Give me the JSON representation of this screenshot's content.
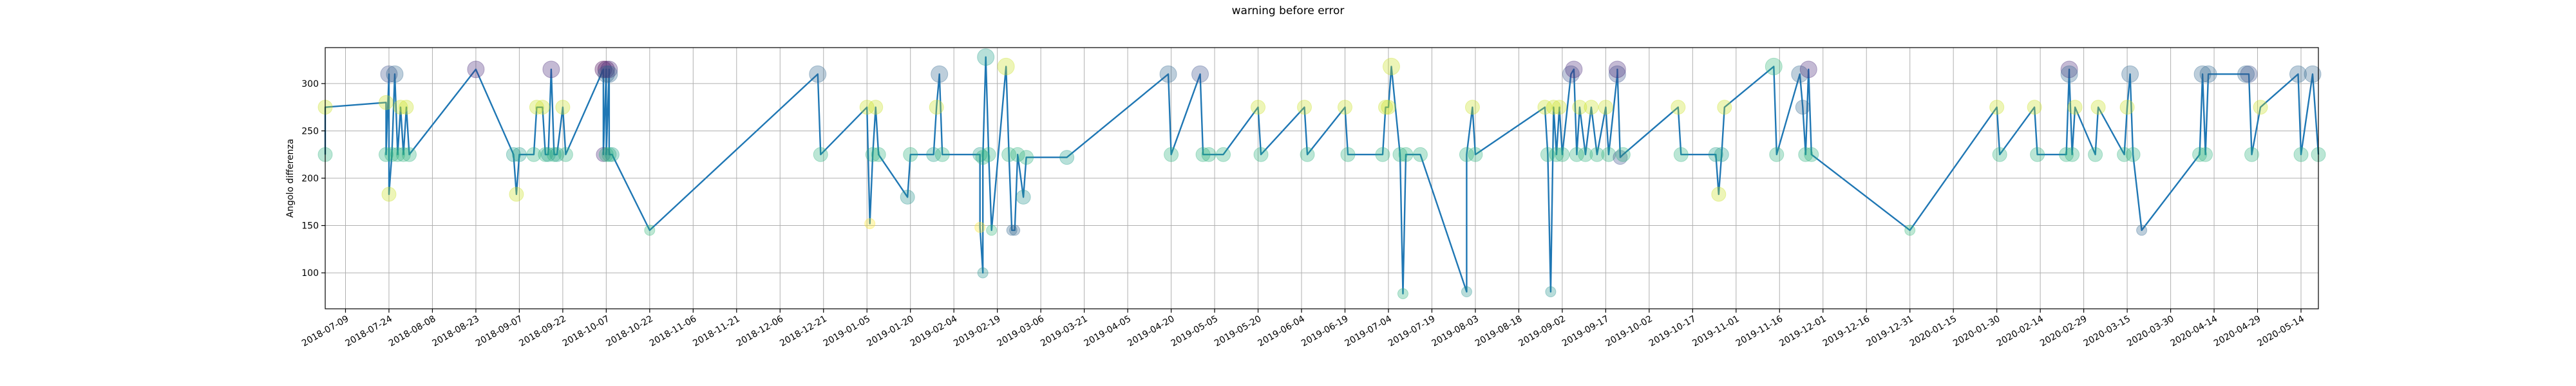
{
  "chart_data": {
    "type": "scatter",
    "title": "warning before error",
    "xlabel": "",
    "ylabel": "Angolo differenza",
    "xlim": [
      "2018-07-02",
      "2020-05-20"
    ],
    "ylim": [
      62,
      338
    ],
    "grid": true,
    "line_color": "#1f77b4",
    "x_ticks": [
      "2018-07-09",
      "2018-07-24",
      "2018-08-08",
      "2018-08-23",
      "2018-09-07",
      "2018-09-22",
      "2018-10-07",
      "2018-10-22",
      "2018-11-06",
      "2018-11-21",
      "2018-12-06",
      "2018-12-21",
      "2019-01-05",
      "2019-01-20",
      "2019-02-04",
      "2019-02-19",
      "2019-03-06",
      "2019-03-21",
      "2019-04-05",
      "2019-04-20",
      "2019-05-05",
      "2019-05-20",
      "2019-06-04",
      "2019-06-19",
      "2019-07-04",
      "2019-07-19",
      "2019-08-03",
      "2019-08-18",
      "2019-09-02",
      "2019-09-17",
      "2019-10-02",
      "2019-10-17",
      "2019-11-01",
      "2019-11-16",
      "2019-12-01",
      "2019-12-16",
      "2019-12-31",
      "2020-01-15",
      "2020-01-30",
      "2020-02-14",
      "2020-02-29",
      "2020-03-15",
      "2020-03-30",
      "2020-04-14",
      "2020-04-29",
      "2020-05-14"
    ],
    "y_ticks": [
      100,
      150,
      200,
      250,
      300
    ],
    "points": [
      {
        "x": "2018-07-02",
        "y": 225,
        "c": "#2db27d"
      },
      {
        "x": "2018-07-02",
        "y": 275,
        "c": "#c8e020"
      },
      {
        "x": "2018-07-23",
        "y": 280,
        "c": "#c8e020"
      },
      {
        "x": "2018-07-23",
        "y": 225,
        "c": "#2db27d"
      },
      {
        "x": "2018-07-24",
        "y": 310,
        "c": "#3b528b"
      },
      {
        "x": "2018-07-24",
        "y": 183,
        "c": "#c8e020"
      },
      {
        "x": "2018-07-25",
        "y": 225,
        "c": "#2db27d"
      },
      {
        "x": "2018-07-26",
        "y": 310,
        "c": "#31688e"
      },
      {
        "x": "2018-07-27",
        "y": 225,
        "c": "#2db27d"
      },
      {
        "x": "2018-07-28",
        "y": 275,
        "c": "#c8e020"
      },
      {
        "x": "2018-07-29",
        "y": 225,
        "c": "#2db27d"
      },
      {
        "x": "2018-07-30",
        "y": 275,
        "c": "#c8e020"
      },
      {
        "x": "2018-07-31",
        "y": 225,
        "c": "#2db27d"
      },
      {
        "x": "2018-08-23",
        "y": 315,
        "c": "#482878"
      },
      {
        "x": "2018-09-05",
        "y": 225,
        "c": "#1f9e89"
      },
      {
        "x": "2018-09-06",
        "y": 183,
        "c": "#c8e020"
      },
      {
        "x": "2018-09-07",
        "y": 225,
        "c": "#1f9e89"
      },
      {
        "x": "2018-09-12",
        "y": 225,
        "c": "#2db27d"
      },
      {
        "x": "2018-09-13",
        "y": 275,
        "c": "#c8e020"
      },
      {
        "x": "2018-09-15",
        "y": 275,
        "c": "#c8e020"
      },
      {
        "x": "2018-09-16",
        "y": 225,
        "c": "#2db27d"
      },
      {
        "x": "2018-09-17",
        "y": 225,
        "c": "#1f9e89"
      },
      {
        "x": "2018-09-18",
        "y": 315,
        "c": "#482878"
      },
      {
        "x": "2018-09-19",
        "y": 225,
        "c": "#2db27d"
      },
      {
        "x": "2018-09-20",
        "y": 225,
        "c": "#1f9e89"
      },
      {
        "x": "2018-09-22",
        "y": 275,
        "c": "#c8e020"
      },
      {
        "x": "2018-09-23",
        "y": 225,
        "c": "#2db27d"
      },
      {
        "x": "2018-10-06",
        "y": 315,
        "c": "#440154"
      },
      {
        "x": "2018-10-06",
        "y": 225,
        "c": "#482878"
      },
      {
        "x": "2018-10-07",
        "y": 315,
        "c": "#440154"
      },
      {
        "x": "2018-10-07",
        "y": 310,
        "c": "#31688e"
      },
      {
        "x": "2018-10-07",
        "y": 225,
        "c": "#2db27d"
      },
      {
        "x": "2018-10-08",
        "y": 315,
        "c": "#482878"
      },
      {
        "x": "2018-10-08",
        "y": 310,
        "c": "#31688e"
      },
      {
        "x": "2018-10-08",
        "y": 225,
        "c": "#2db27d"
      },
      {
        "x": "2018-10-09",
        "y": 225,
        "c": "#1f9e89"
      },
      {
        "x": "2018-10-22",
        "y": 145,
        "c": "#35b779"
      },
      {
        "x": "2018-12-19",
        "y": 310,
        "c": "#31688e"
      },
      {
        "x": "2018-12-20",
        "y": 225,
        "c": "#2db27d"
      },
      {
        "x": "2019-01-05",
        "y": 275,
        "c": "#c8e020"
      },
      {
        "x": "2019-01-06",
        "y": 152,
        "c": "#fde725"
      },
      {
        "x": "2019-01-07",
        "y": 225,
        "c": "#2db27d"
      },
      {
        "x": "2019-01-08",
        "y": 275,
        "c": "#c8e020"
      },
      {
        "x": "2019-01-09",
        "y": 225,
        "c": "#2db27d"
      },
      {
        "x": "2019-01-19",
        "y": 180,
        "c": "#21918c"
      },
      {
        "x": "2019-01-20",
        "y": 225,
        "c": "#2db27d"
      },
      {
        "x": "2019-01-28",
        "y": 225,
        "c": "#1f9e89"
      },
      {
        "x": "2019-01-29",
        "y": 275,
        "c": "#c8e020"
      },
      {
        "x": "2019-01-30",
        "y": 310,
        "c": "#31688e"
      },
      {
        "x": "2019-01-31",
        "y": 225,
        "c": "#2db27d"
      },
      {
        "x": "2019-02-13",
        "y": 225,
        "c": "#1f9e89"
      },
      {
        "x": "2019-02-13",
        "y": 148,
        "c": "#fde725"
      },
      {
        "x": "2019-02-14",
        "y": 100,
        "c": "#21918c"
      },
      {
        "x": "2019-02-14",
        "y": 222,
        "c": "#2db27d"
      },
      {
        "x": "2019-02-15",
        "y": 328,
        "c": "#1f9e89"
      },
      {
        "x": "2019-02-16",
        "y": 225,
        "c": "#2db27d"
      },
      {
        "x": "2019-02-17",
        "y": 145,
        "c": "#35b779"
      },
      {
        "x": "2019-02-22",
        "y": 318,
        "c": "#c8e020"
      },
      {
        "x": "2019-02-23",
        "y": 225,
        "c": "#2db27d"
      },
      {
        "x": "2019-02-24",
        "y": 145,
        "c": "#31688e"
      },
      {
        "x": "2019-02-25",
        "y": 145,
        "c": "#31688e"
      },
      {
        "x": "2019-02-26",
        "y": 225,
        "c": "#2db27d"
      },
      {
        "x": "2019-02-28",
        "y": 180,
        "c": "#21918c"
      },
      {
        "x": "2019-03-01",
        "y": 222,
        "c": "#2db27d"
      },
      {
        "x": "2019-03-15",
        "y": 222,
        "c": "#1f9e89"
      },
      {
        "x": "2019-04-19",
        "y": 310,
        "c": "#31688e"
      },
      {
        "x": "2019-04-20",
        "y": 225,
        "c": "#2db27d"
      },
      {
        "x": "2019-04-30",
        "y": 310,
        "c": "#3b528b"
      },
      {
        "x": "2019-05-01",
        "y": 225,
        "c": "#2db27d"
      },
      {
        "x": "2019-05-03",
        "y": 225,
        "c": "#2db27d"
      },
      {
        "x": "2019-05-08",
        "y": 225,
        "c": "#2db27d"
      },
      {
        "x": "2019-05-20",
        "y": 275,
        "c": "#c8e020"
      },
      {
        "x": "2019-05-21",
        "y": 225,
        "c": "#2db27d"
      },
      {
        "x": "2019-06-05",
        "y": 275,
        "c": "#c8e020"
      },
      {
        "x": "2019-06-06",
        "y": 225,
        "c": "#2db27d"
      },
      {
        "x": "2019-06-19",
        "y": 275,
        "c": "#c8e020"
      },
      {
        "x": "2019-06-20",
        "y": 225,
        "c": "#2db27d"
      },
      {
        "x": "2019-07-02",
        "y": 225,
        "c": "#2db27d"
      },
      {
        "x": "2019-07-03",
        "y": 275,
        "c": "#c8e020"
      },
      {
        "x": "2019-07-04",
        "y": 275,
        "c": "#c8e020"
      },
      {
        "x": "2019-07-05",
        "y": 318,
        "c": "#c8e020"
      },
      {
        "x": "2019-07-08",
        "y": 225,
        "c": "#2db27d"
      },
      {
        "x": "2019-07-09",
        "y": 78,
        "c": "#2db27d"
      },
      {
        "x": "2019-07-10",
        "y": 225,
        "c": "#2db27d"
      },
      {
        "x": "2019-07-15",
        "y": 225,
        "c": "#2db27d"
      },
      {
        "x": "2019-07-31",
        "y": 80,
        "c": "#21918c"
      },
      {
        "x": "2019-07-31",
        "y": 225,
        "c": "#2db27d"
      },
      {
        "x": "2019-08-02",
        "y": 275,
        "c": "#c8e020"
      },
      {
        "x": "2019-08-03",
        "y": 225,
        "c": "#2db27d"
      },
      {
        "x": "2019-08-27",
        "y": 275,
        "c": "#c8e020"
      },
      {
        "x": "2019-08-28",
        "y": 225,
        "c": "#2db27d"
      },
      {
        "x": "2019-08-29",
        "y": 80,
        "c": "#21918c"
      },
      {
        "x": "2019-08-30",
        "y": 275,
        "c": "#c8e020"
      },
      {
        "x": "2019-08-31",
        "y": 225,
        "c": "#2db27d"
      },
      {
        "x": "2019-09-01",
        "y": 275,
        "c": "#c8e020"
      },
      {
        "x": "2019-09-02",
        "y": 225,
        "c": "#2db27d"
      },
      {
        "x": "2019-09-05",
        "y": 310,
        "c": "#3b528b"
      },
      {
        "x": "2019-09-06",
        "y": 315,
        "c": "#482878"
      },
      {
        "x": "2019-09-07",
        "y": 225,
        "c": "#2db27d"
      },
      {
        "x": "2019-09-08",
        "y": 275,
        "c": "#c8e020"
      },
      {
        "x": "2019-09-10",
        "y": 225,
        "c": "#2db27d"
      },
      {
        "x": "2019-09-12",
        "y": 275,
        "c": "#c8e020"
      },
      {
        "x": "2019-09-14",
        "y": 225,
        "c": "#2db27d"
      },
      {
        "x": "2019-09-17",
        "y": 275,
        "c": "#c8e020"
      },
      {
        "x": "2019-09-18",
        "y": 225,
        "c": "#2db27d"
      },
      {
        "x": "2019-09-21",
        "y": 310,
        "c": "#3b528b"
      },
      {
        "x": "2019-09-21",
        "y": 315,
        "c": "#482878"
      },
      {
        "x": "2019-09-22",
        "y": 222,
        "c": "#3b528b"
      },
      {
        "x": "2019-09-23",
        "y": 225,
        "c": "#2db27d"
      },
      {
        "x": "2019-10-12",
        "y": 275,
        "c": "#c8e020"
      },
      {
        "x": "2019-10-13",
        "y": 225,
        "c": "#2db27d"
      },
      {
        "x": "2019-10-25",
        "y": 225,
        "c": "#1f9e89"
      },
      {
        "x": "2019-10-26",
        "y": 183,
        "c": "#c8e020"
      },
      {
        "x": "2019-10-27",
        "y": 225,
        "c": "#1f9e89"
      },
      {
        "x": "2019-10-28",
        "y": 275,
        "c": "#c8e020"
      },
      {
        "x": "2019-11-14",
        "y": 318,
        "c": "#35b779"
      },
      {
        "x": "2019-11-15",
        "y": 225,
        "c": "#2db27d"
      },
      {
        "x": "2019-11-23",
        "y": 310,
        "c": "#31688e"
      },
      {
        "x": "2019-11-24",
        "y": 275,
        "c": "#31688e"
      },
      {
        "x": "2019-11-25",
        "y": 225,
        "c": "#2db27d"
      },
      {
        "x": "2019-11-26",
        "y": 315,
        "c": "#482878"
      },
      {
        "x": "2019-11-27",
        "y": 225,
        "c": "#2db27d"
      },
      {
        "x": "2019-12-31",
        "y": 145,
        "c": "#35b779"
      },
      {
        "x": "2020-01-30",
        "y": 275,
        "c": "#c8e020"
      },
      {
        "x": "2020-01-31",
        "y": 225,
        "c": "#2db27d"
      },
      {
        "x": "2020-02-12",
        "y": 275,
        "c": "#c8e020"
      },
      {
        "x": "2020-02-13",
        "y": 225,
        "c": "#2db27d"
      },
      {
        "x": "2020-02-23",
        "y": 225,
        "c": "#2db27d"
      },
      {
        "x": "2020-02-24",
        "y": 315,
        "c": "#482878"
      },
      {
        "x": "2020-02-24",
        "y": 310,
        "c": "#31688e"
      },
      {
        "x": "2020-02-25",
        "y": 225,
        "c": "#2db27d"
      },
      {
        "x": "2020-02-26",
        "y": 275,
        "c": "#c8e020"
      },
      {
        "x": "2020-03-04",
        "y": 225,
        "c": "#2db27d"
      },
      {
        "x": "2020-03-05",
        "y": 275,
        "c": "#c8e020"
      },
      {
        "x": "2020-03-14",
        "y": 225,
        "c": "#2db27d"
      },
      {
        "x": "2020-03-15",
        "y": 275,
        "c": "#c8e020"
      },
      {
        "x": "2020-03-16",
        "y": 310,
        "c": "#31688e"
      },
      {
        "x": "2020-03-17",
        "y": 225,
        "c": "#2db27d"
      },
      {
        "x": "2020-03-20",
        "y": 145,
        "c": "#31688e"
      },
      {
        "x": "2020-04-09",
        "y": 225,
        "c": "#2db27d"
      },
      {
        "x": "2020-04-10",
        "y": 310,
        "c": "#31688e"
      },
      {
        "x": "2020-04-11",
        "y": 225,
        "c": "#2db27d"
      },
      {
        "x": "2020-04-12",
        "y": 310,
        "c": "#31688e"
      },
      {
        "x": "2020-04-25",
        "y": 310,
        "c": "#31688e"
      },
      {
        "x": "2020-04-26",
        "y": 310,
        "c": "#3b528b"
      },
      {
        "x": "2020-04-27",
        "y": 225,
        "c": "#2db27d"
      },
      {
        "x": "2020-04-30",
        "y": 275,
        "c": "#c8e020"
      },
      {
        "x": "2020-05-13",
        "y": 310,
        "c": "#31688e"
      },
      {
        "x": "2020-05-14",
        "y": 225,
        "c": "#2db27d"
      },
      {
        "x": "2020-05-18",
        "y": 310,
        "c": "#31688e"
      },
      {
        "x": "2020-05-20",
        "y": 225,
        "c": "#2db27d"
      }
    ]
  }
}
